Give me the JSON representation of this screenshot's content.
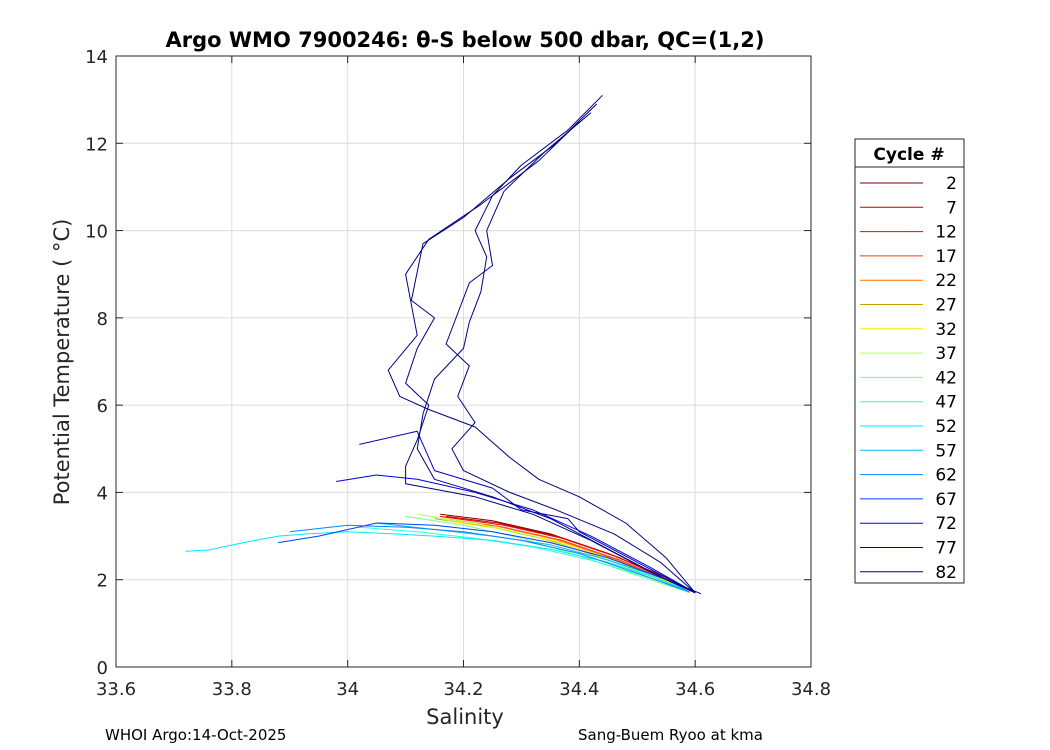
{
  "chart_data": {
    "type": "line",
    "title": "Argo WMO 7900246: θ-S below 500 dbar,  QC=(1,2)",
    "xlabel": "Salinity",
    "ylabel": "Potential Temperature ( °C)",
    "xlim": [
      33.6,
      34.8
    ],
    "ylim": [
      0,
      14
    ],
    "xticks": [
      "33.6",
      "33.8",
      "34",
      "34.2",
      "34.4",
      "34.6",
      "34.8"
    ],
    "yticks": [
      "0",
      "2",
      "4",
      "6",
      "8",
      "10",
      "12",
      "14"
    ],
    "grid": true,
    "legend": {
      "title": "Cycle #",
      "placement": "right",
      "entries": [
        "2",
        "7",
        "12",
        "17",
        "22",
        "27",
        "32",
        "37",
        "42",
        "47",
        "52",
        "57",
        "62",
        "67",
        "72",
        "77",
        "82"
      ],
      "colors": [
        "#7f0000",
        "#b80000",
        "#f00000",
        "#ff3800",
        "#ff7000",
        "#c8a000",
        "#f0f000",
        "#b8ff48",
        "#70ff90",
        "#28ffd8",
        "#00e8ff",
        "#00b8ff",
        "#0088ff",
        "#0040ff",
        "#0000e8",
        "#0000b8",
        "#000080"
      ]
    },
    "series": [
      {
        "color": "#7f0000",
        "points": [
          [
            34.16,
            3.5
          ],
          [
            34.25,
            3.35
          ],
          [
            34.35,
            3.05
          ],
          [
            34.45,
            2.6
          ],
          [
            34.55,
            2.05
          ],
          [
            34.6,
            1.7
          ]
        ]
      },
      {
        "color": "#b80000",
        "points": [
          [
            34.17,
            3.45
          ],
          [
            34.26,
            3.3
          ],
          [
            34.36,
            3.0
          ],
          [
            34.46,
            2.55
          ],
          [
            34.56,
            2.0
          ],
          [
            34.6,
            1.7
          ]
        ]
      },
      {
        "color": "#f00000",
        "points": [
          [
            34.16,
            3.45
          ],
          [
            34.27,
            3.25
          ],
          [
            34.37,
            2.95
          ],
          [
            34.47,
            2.5
          ],
          [
            34.56,
            1.95
          ],
          [
            34.6,
            1.7
          ]
        ]
      },
      {
        "color": "#ff3800",
        "points": [
          [
            34.17,
            3.4
          ],
          [
            34.27,
            3.2
          ],
          [
            34.37,
            2.9
          ],
          [
            34.47,
            2.45
          ],
          [
            34.56,
            1.95
          ],
          [
            34.59,
            1.7
          ]
        ]
      },
      {
        "color": "#ff7000",
        "points": [
          [
            34.16,
            3.42
          ],
          [
            34.26,
            3.22
          ],
          [
            34.36,
            2.92
          ],
          [
            34.46,
            2.48
          ],
          [
            34.55,
            1.98
          ],
          [
            34.59,
            1.7
          ]
        ]
      },
      {
        "color": "#c8a000",
        "points": [
          [
            34.15,
            3.4
          ],
          [
            34.25,
            3.2
          ],
          [
            34.35,
            2.9
          ],
          [
            34.45,
            2.45
          ],
          [
            34.55,
            1.95
          ],
          [
            34.59,
            1.7
          ]
        ]
      },
      {
        "color": "#f0f000",
        "points": [
          [
            34.17,
            3.35
          ],
          [
            34.27,
            3.15
          ],
          [
            34.37,
            2.85
          ],
          [
            34.47,
            2.4
          ],
          [
            34.56,
            1.92
          ],
          [
            34.59,
            1.7
          ]
        ]
      },
      {
        "color": "#b8ff48",
        "points": [
          [
            34.12,
            3.5
          ],
          [
            34.22,
            3.3
          ],
          [
            34.32,
            3.0
          ],
          [
            34.42,
            2.6
          ],
          [
            34.52,
            2.1
          ],
          [
            34.59,
            1.72
          ]
        ]
      },
      {
        "color": "#70ff90",
        "points": [
          [
            34.1,
            3.45
          ],
          [
            34.2,
            3.25
          ],
          [
            34.3,
            2.95
          ],
          [
            34.4,
            2.55
          ],
          [
            34.5,
            2.1
          ],
          [
            34.58,
            1.75
          ]
        ]
      },
      {
        "color": "#28ffd8",
        "points": [
          [
            34.02,
            3.2
          ],
          [
            34.12,
            3.1
          ],
          [
            34.22,
            2.95
          ],
          [
            34.32,
            2.75
          ],
          [
            34.42,
            2.45
          ],
          [
            34.52,
            2.05
          ],
          [
            34.59,
            1.72
          ]
        ]
      },
      {
        "color": "#00e8ff",
        "points": [
          [
            33.72,
            2.65
          ],
          [
            33.76,
            2.68
          ],
          [
            33.82,
            2.85
          ],
          [
            33.88,
            3.0
          ],
          [
            33.93,
            3.05
          ],
          [
            34.0,
            3.1
          ],
          [
            34.08,
            3.05
          ],
          [
            34.15,
            3.0
          ],
          [
            34.25,
            2.9
          ],
          [
            34.35,
            2.7
          ],
          [
            34.45,
            2.4
          ],
          [
            34.53,
            2.05
          ],
          [
            34.59,
            1.72
          ]
        ]
      },
      {
        "color": "#00b8ff",
        "points": [
          [
            34.05,
            3.3
          ],
          [
            34.15,
            3.15
          ],
          [
            34.25,
            3.0
          ],
          [
            34.35,
            2.8
          ],
          [
            34.45,
            2.45
          ],
          [
            34.55,
            2.0
          ],
          [
            34.59,
            1.72
          ]
        ]
      },
      {
        "color": "#0088ff",
        "points": [
          [
            33.9,
            3.1
          ],
          [
            34.0,
            3.25
          ],
          [
            34.1,
            3.2
          ],
          [
            34.2,
            3.1
          ],
          [
            34.3,
            2.9
          ],
          [
            34.4,
            2.6
          ],
          [
            34.5,
            2.15
          ],
          [
            34.59,
            1.72
          ]
        ]
      },
      {
        "color": "#0040ff",
        "points": [
          [
            33.88,
            2.85
          ],
          [
            33.95,
            3.0
          ],
          [
            34.05,
            3.3
          ],
          [
            34.15,
            3.25
          ],
          [
            34.25,
            3.1
          ],
          [
            34.35,
            2.85
          ],
          [
            34.45,
            2.5
          ],
          [
            34.55,
            2.0
          ],
          [
            34.6,
            1.7
          ]
        ]
      },
      {
        "color": "#0000e8",
        "points": [
          [
            33.98,
            4.25
          ],
          [
            34.05,
            4.4
          ],
          [
            34.12,
            4.3
          ],
          [
            34.22,
            4.0
          ],
          [
            34.32,
            3.6
          ],
          [
            34.42,
            3.0
          ],
          [
            34.52,
            2.3
          ],
          [
            34.6,
            1.7
          ]
        ]
      },
      {
        "color": "#0000b8",
        "points": [
          [
            34.02,
            5.1
          ],
          [
            34.12,
            5.4
          ],
          [
            34.15,
            4.5
          ],
          [
            34.25,
            4.1
          ],
          [
            34.3,
            3.6
          ],
          [
            34.38,
            3.4
          ],
          [
            34.4,
            3.1
          ],
          [
            34.5,
            2.4
          ],
          [
            34.6,
            1.7
          ]
        ]
      },
      {
        "color": "#000080",
        "points": [
          [
            34.44,
            13.1
          ],
          [
            34.38,
            12.3
          ],
          [
            34.3,
            11.5
          ],
          [
            34.25,
            10.8
          ],
          [
            34.22,
            10.0
          ],
          [
            34.24,
            9.4
          ],
          [
            34.23,
            8.6
          ],
          [
            34.21,
            7.9
          ],
          [
            34.2,
            7.3
          ],
          [
            34.15,
            6.6
          ],
          [
            34.13,
            5.8
          ],
          [
            34.12,
            5.0
          ],
          [
            34.15,
            4.3
          ],
          [
            34.25,
            3.9
          ],
          [
            34.35,
            3.4
          ],
          [
            34.45,
            2.7
          ],
          [
            34.55,
            2.0
          ],
          [
            34.61,
            1.68
          ]
        ]
      },
      {
        "color": "#000080",
        "points": [
          [
            34.43,
            12.9
          ],
          [
            34.36,
            12.0
          ],
          [
            34.28,
            11.2
          ],
          [
            34.2,
            10.3
          ],
          [
            34.13,
            9.7
          ],
          [
            34.11,
            8.4
          ],
          [
            34.15,
            8.0
          ],
          [
            34.12,
            7.3
          ],
          [
            34.1,
            6.5
          ],
          [
            34.14,
            6.0
          ],
          [
            34.12,
            5.2
          ],
          [
            34.1,
            4.6
          ],
          [
            34.1,
            4.2
          ],
          [
            34.22,
            3.9
          ],
          [
            34.32,
            3.5
          ],
          [
            34.42,
            2.9
          ],
          [
            34.52,
            2.2
          ],
          [
            34.6,
            1.7
          ]
        ]
      },
      {
        "color": "#000080",
        "points": [
          [
            34.42,
            12.7
          ],
          [
            34.34,
            11.8
          ],
          [
            34.27,
            10.9
          ],
          [
            34.24,
            10.0
          ],
          [
            34.25,
            9.2
          ],
          [
            34.21,
            8.8
          ],
          [
            34.19,
            8.1
          ],
          [
            34.17,
            7.4
          ],
          [
            34.21,
            6.9
          ],
          [
            34.19,
            6.2
          ],
          [
            34.22,
            5.6
          ],
          [
            34.18,
            5.0
          ],
          [
            34.2,
            4.5
          ],
          [
            34.28,
            4.0
          ],
          [
            34.36,
            3.6
          ],
          [
            34.46,
            3.05
          ],
          [
            34.54,
            2.4
          ],
          [
            34.6,
            1.7
          ]
        ]
      },
      {
        "color": "#000080",
        "points": [
          [
            34.4,
            12.5
          ],
          [
            34.33,
            11.6
          ],
          [
            34.23,
            10.6
          ],
          [
            34.14,
            9.8
          ],
          [
            34.1,
            9.0
          ],
          [
            34.12,
            7.6
          ],
          [
            34.07,
            6.8
          ],
          [
            34.09,
            6.2
          ],
          [
            34.14,
            5.9
          ],
          [
            34.22,
            5.5
          ],
          [
            34.28,
            4.8
          ],
          [
            34.33,
            4.3
          ],
          [
            34.4,
            3.9
          ],
          [
            34.48,
            3.3
          ],
          [
            34.55,
            2.5
          ],
          [
            34.6,
            1.7
          ]
        ]
      }
    ]
  },
  "footer": {
    "left": "WHOI Argo:14-Oct-2025",
    "right": "Sang-Buem Ryoo at kma"
  }
}
